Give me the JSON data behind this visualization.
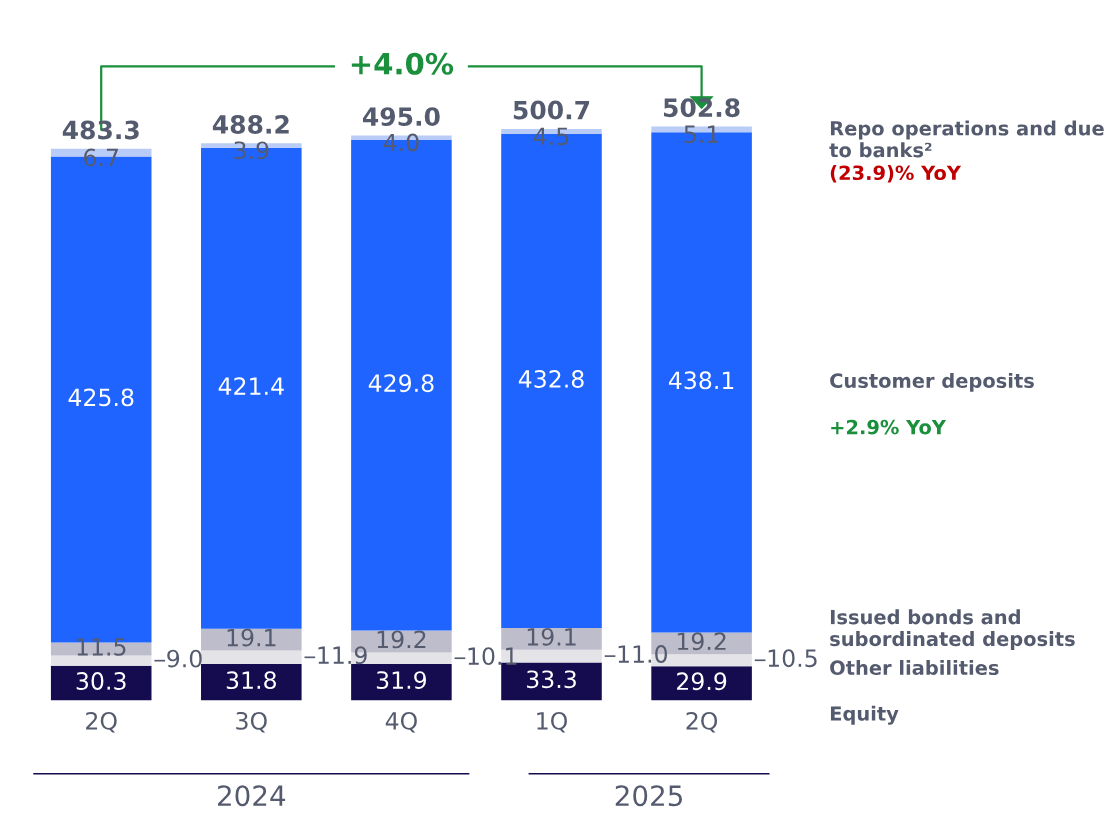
{
  "chart_data": {
    "type": "bar",
    "stacked": true,
    "grid": false,
    "categories": [
      "2Q",
      "3Q",
      "4Q",
      "1Q",
      "2Q"
    ],
    "series": [
      {
        "name": "Equity",
        "color": "#140c4f",
        "values": [
          30.3,
          31.8,
          31.9,
          33.3,
          29.9
        ],
        "value_labels": [
          "30.3",
          "31.8",
          "31.9",
          "33.3",
          "29.9"
        ]
      },
      {
        "name": "Other liabilities",
        "color": "#e3e3e8",
        "values": [
          9.0,
          11.9,
          10.1,
          11.0,
          10.5
        ],
        "value_labels": [
          "9.0",
          "11.9",
          "10.1",
          "11.0",
          "10.5"
        ]
      },
      {
        "name": "Issued bonds and subordinated deposits",
        "color": "#bebdcb",
        "values": [
          11.5,
          19.1,
          19.2,
          19.1,
          19.2
        ],
        "value_labels": [
          "11.5",
          "19.1",
          "19.2",
          "19.1",
          "19.2"
        ]
      },
      {
        "name": "Customer deposits",
        "color": "#1f64ff",
        "values": [
          425.8,
          421.4,
          429.8,
          432.8,
          438.1
        ],
        "value_labels": [
          "425.8",
          "421.4",
          "429.8",
          "432.8",
          "438.1"
        ]
      },
      {
        "name": "Repo operations and due to banks²",
        "color": "#b8ccf7",
        "values": [
          6.7,
          3.9,
          4.0,
          4.5,
          5.1
        ],
        "value_labels": [
          "6.7",
          "3.9",
          "4.0",
          "4.5",
          "5.1"
        ]
      }
    ],
    "totals": [
      "483.3",
      "488.2",
      "495.0",
      "500.7",
      "502.8"
    ],
    "annotations": [
      "+4.0%",
      "(23.9)% YoY",
      "+2.9% YoY",
      "2024",
      "2025"
    ]
  }
}
